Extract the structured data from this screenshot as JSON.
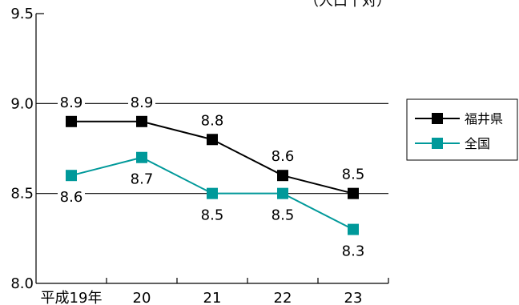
{
  "chart_data": {
    "type": "line",
    "title": "",
    "note": "（人口千対）",
    "xlabel": "",
    "ylabel": "",
    "categories": [
      "平成19年",
      "20",
      "21",
      "22",
      "23"
    ],
    "ylim": [
      8.0,
      9.5
    ],
    "yticks": [
      "8.0",
      "8.5",
      "9.0",
      "9.5"
    ],
    "grid": "horizontal at 8.5 and 9.0",
    "legend_position": "right",
    "series": [
      {
        "name": "福井県",
        "color": "#000000",
        "marker": "square",
        "values": [
          8.9,
          8.9,
          8.8,
          8.6,
          8.5
        ],
        "labels": [
          "8.9",
          "8.9",
          "8.8",
          "8.6",
          "8.5"
        ]
      },
      {
        "name": "全国",
        "color": "#00999a",
        "marker": "square",
        "values": [
          8.6,
          8.7,
          8.5,
          8.5,
          8.3
        ],
        "labels": [
          "8.6",
          "8.7",
          "8.5",
          "8.5",
          "8.3"
        ]
      }
    ]
  }
}
